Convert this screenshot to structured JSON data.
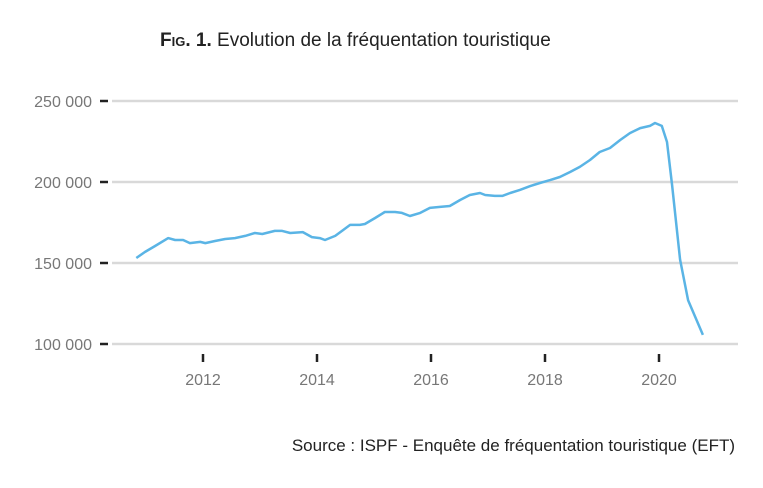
{
  "chart_data": {
    "type": "line",
    "title_prefix": "Fig. 1.",
    "title": "Evolution de la fréquentation touristique",
    "source": "Source : ISPF - Enquête de fréquentation touristique (EFT)",
    "xlabel": "",
    "ylabel": "",
    "xlim": [
      2010.3,
      2021.3
    ],
    "ylim": [
      100000,
      250000
    ],
    "x_ticks": [
      2012,
      2014,
      2016,
      2018,
      2020
    ],
    "x_tick_labels": [
      "2012",
      "2014",
      "2016",
      "2018",
      "2020"
    ],
    "y_ticks": [
      100000,
      150000,
      200000,
      250000
    ],
    "y_tick_labels": [
      "100 000",
      "150 000",
      "200 000",
      "250 000"
    ],
    "grid": "horizontal",
    "line_color": "#5ab4e5",
    "series": [
      {
        "x": [
          2010.83,
          2010.98,
          2011.16,
          2011.39,
          2011.51,
          2011.65,
          2011.77,
          2011.95,
          2012.04,
          2012.21,
          2012.39,
          2012.56,
          2012.74,
          2012.91,
          2013.04,
          2013.26,
          2013.39,
          2013.53,
          2013.75,
          2013.91,
          2014.05,
          2014.14,
          2014.32,
          2014.46,
          2014.58,
          2014.75,
          2014.84,
          2015.02,
          2015.19,
          2015.37,
          2015.49,
          2015.63,
          2015.81,
          2015.98,
          2016.16,
          2016.33,
          2016.51,
          2016.68,
          2016.86,
          2016.95,
          2017.12,
          2017.25,
          2017.39,
          2017.56,
          2017.74,
          2017.91,
          2018.09,
          2018.26,
          2018.44,
          2018.61,
          2018.79,
          2018.96,
          2019.14,
          2019.32,
          2019.49,
          2019.67,
          2019.84,
          2019.93,
          2020.05,
          2020.14,
          2020.23,
          2020.37,
          2020.51,
          2020.77
        ],
        "y": [
          153100,
          156800,
          160500,
          165400,
          164200,
          164200,
          162300,
          163000,
          162300,
          163600,
          164800,
          165400,
          166700,
          168500,
          167900,
          169800,
          169800,
          168500,
          169100,
          166000,
          165400,
          164200,
          166700,
          170400,
          173500,
          173500,
          174100,
          177800,
          181500,
          181500,
          180900,
          179000,
          180900,
          184000,
          184600,
          185200,
          188900,
          192000,
          193200,
          192000,
          191400,
          191400,
          193200,
          195100,
          197500,
          199400,
          201200,
          203100,
          206200,
          209300,
          213600,
          218500,
          221000,
          225900,
          230200,
          233300,
          234600,
          236400,
          234600,
          224700,
          198000,
          152000,
          127000,
          105600
        ]
      }
    ]
  }
}
